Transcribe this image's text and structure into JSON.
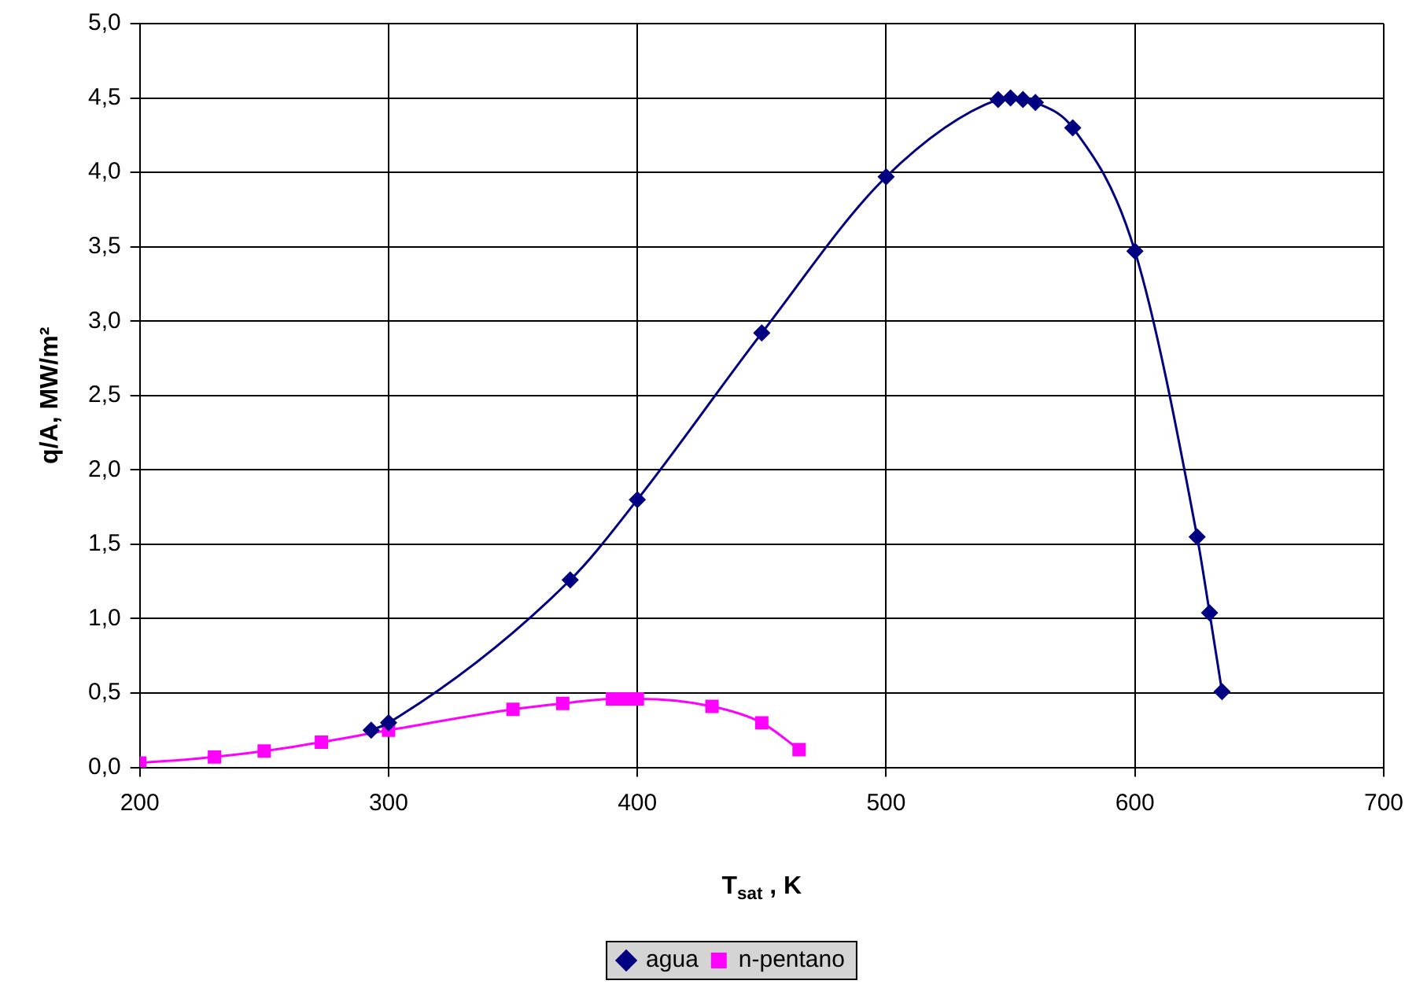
{
  "chart_data": {
    "type": "line",
    "xlabel": "T$_{sat}$ , K",
    "ylabel": "q/A, MW/m²",
    "series": [
      {
        "name": "agua",
        "color": "#000080",
        "marker": "diamond",
        "x": [
          293,
          300,
          373,
          400,
          450,
          500,
          545,
          550,
          555,
          560,
          575,
          600,
          625,
          630,
          635
        ],
        "values": [
          0.25,
          0.3,
          1.26,
          1.8,
          2.92,
          3.97,
          4.49,
          4.5,
          4.49,
          4.47,
          4.3,
          3.47,
          1.55,
          1.04,
          0.51
        ]
      },
      {
        "name": "n-pentano",
        "color": "#ff00ff",
        "marker": "square",
        "x": [
          200,
          230,
          250,
          273,
          300,
          350,
          370,
          390,
          395,
          400,
          430,
          450,
          465
        ],
        "values": [
          0.03,
          0.07,
          0.11,
          0.17,
          0.25,
          0.39,
          0.43,
          0.46,
          0.46,
          0.46,
          0.41,
          0.3,
          0.12
        ]
      }
    ],
    "xlim": [
      200,
      700
    ],
    "xticks": [
      200,
      300,
      400,
      500,
      600,
      700
    ],
    "ylim": [
      0,
      5
    ],
    "yticks": [
      {
        "value": 0,
        "label": "0,0"
      },
      {
        "value": 0.5,
        "label": "0,5"
      },
      {
        "value": 1,
        "label": "1,0"
      },
      {
        "value": 1.5,
        "label": "1,5"
      },
      {
        "value": 2,
        "label": "2,0"
      },
      {
        "value": 2.5,
        "label": "2,5"
      },
      {
        "value": 3,
        "label": "3,0"
      },
      {
        "value": 3.5,
        "label": "3,5"
      },
      {
        "value": 4,
        "label": "4,0"
      },
      {
        "value": 4.5,
        "label": "4,5"
      },
      {
        "value": 5,
        "label": "5,0"
      }
    ],
    "grid": true,
    "legend": "bottom"
  }
}
